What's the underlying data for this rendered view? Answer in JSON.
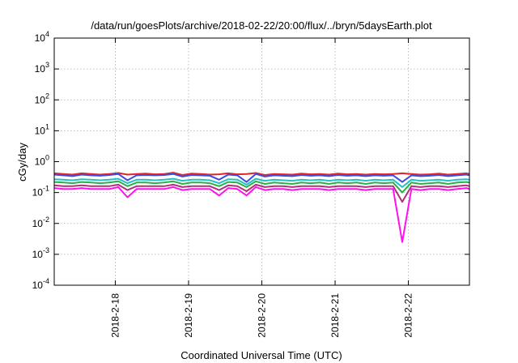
{
  "chart_data": {
    "type": "line",
    "title": "/data/run/goesPlots/archive/2018-02-22/20:00/flux/../bryn/5daysEarth.plot",
    "xlabel": "Coordinated Universal Time (UTC)",
    "ylabel": "cGy/day",
    "y_scale": "log",
    "ylim": [
      0.0001,
      10000
    ],
    "y_ticks": [
      {
        "value": 0.0001,
        "base": "10",
        "exp": "-4"
      },
      {
        "value": 0.001,
        "base": "10",
        "exp": "-3"
      },
      {
        "value": 0.01,
        "base": "10",
        "exp": "-2"
      },
      {
        "value": 0.1,
        "base": "10",
        "exp": "-1"
      },
      {
        "value": 1,
        "base": "10",
        "exp": "0"
      },
      {
        "value": 10,
        "base": "10",
        "exp": "1"
      },
      {
        "value": 100,
        "base": "10",
        "exp": "2"
      },
      {
        "value": 1000,
        "base": "10",
        "exp": "3"
      },
      {
        "value": 10000,
        "base": "10",
        "exp": "4"
      }
    ],
    "xlim": [
      "2018-02-17T04:00",
      "2018-02-22T20:00"
    ],
    "x_ticks": [
      {
        "value": "2018-02-18T00:00",
        "label": "2018-2-18"
      },
      {
        "value": "2018-02-19T00:00",
        "label": "2018-2-19"
      },
      {
        "value": "2018-02-20T00:00",
        "label": "2018-2-20"
      },
      {
        "value": "2018-02-21T00:00",
        "label": "2018-2-21"
      },
      {
        "value": "2018-02-22T00:00",
        "label": "2018-2-22"
      }
    ],
    "grid": true,
    "legend": "none",
    "x": [
      "2018-02-17T04:00",
      "2018-02-17T07:00",
      "2018-02-17T10:00",
      "2018-02-17T13:00",
      "2018-02-17T16:00",
      "2018-02-17T19:00",
      "2018-02-17T22:00",
      "2018-02-18T01:00",
      "2018-02-18T04:00",
      "2018-02-18T07:00",
      "2018-02-18T10:00",
      "2018-02-18T13:00",
      "2018-02-18T16:00",
      "2018-02-18T19:00",
      "2018-02-18T22:00",
      "2018-02-19T01:00",
      "2018-02-19T04:00",
      "2018-02-19T07:00",
      "2018-02-19T10:00",
      "2018-02-19T13:00",
      "2018-02-19T16:00",
      "2018-02-19T19:00",
      "2018-02-19T22:00",
      "2018-02-20T01:00",
      "2018-02-20T04:00",
      "2018-02-20T07:00",
      "2018-02-20T10:00",
      "2018-02-20T13:00",
      "2018-02-20T16:00",
      "2018-02-20T19:00",
      "2018-02-20T22:00",
      "2018-02-21T01:00",
      "2018-02-21T04:00",
      "2018-02-21T07:00",
      "2018-02-21T10:00",
      "2018-02-21T13:00",
      "2018-02-21T16:00",
      "2018-02-21T19:00",
      "2018-02-21T22:00",
      "2018-02-22T01:00",
      "2018-02-22T04:00",
      "2018-02-22T07:00",
      "2018-02-22T10:00",
      "2018-02-22T13:00",
      "2018-02-22T16:00",
      "2018-02-22T19:00",
      "2018-02-22T20:00"
    ],
    "series": [
      {
        "color": "#e3242b",
        "values": [
          0.42,
          0.4,
          0.38,
          0.42,
          0.4,
          0.38,
          0.4,
          0.43,
          0.38,
          0.4,
          0.41,
          0.39,
          0.4,
          0.44,
          0.37,
          0.41,
          0.4,
          0.38,
          0.39,
          0.42,
          0.39,
          0.4,
          0.43,
          0.37,
          0.4,
          0.39,
          0.38,
          0.41,
          0.39,
          0.4,
          0.38,
          0.41,
          0.39,
          0.4,
          0.38,
          0.4,
          0.39,
          0.4,
          0.42,
          0.4,
          0.38,
          0.39,
          0.41,
          0.38,
          0.4,
          0.42,
          0.4
        ]
      },
      {
        "color": "#3a4ee0",
        "values": [
          0.38,
          0.36,
          0.34,
          0.38,
          0.36,
          0.35,
          0.37,
          0.4,
          0.25,
          0.36,
          0.37,
          0.36,
          0.37,
          0.4,
          0.33,
          0.37,
          0.36,
          0.35,
          0.26,
          0.38,
          0.36,
          0.22,
          0.4,
          0.33,
          0.36,
          0.35,
          0.34,
          0.37,
          0.35,
          0.36,
          0.34,
          0.37,
          0.35,
          0.36,
          0.34,
          0.36,
          0.35,
          0.36,
          0.22,
          0.36,
          0.34,
          0.35,
          0.37,
          0.34,
          0.36,
          0.38,
          0.36
        ]
      },
      {
        "color": "#22c2c2",
        "values": [
          0.27,
          0.26,
          0.25,
          0.27,
          0.26,
          0.25,
          0.26,
          0.28,
          0.2,
          0.26,
          0.26,
          0.25,
          0.26,
          0.28,
          0.24,
          0.26,
          0.26,
          0.25,
          0.2,
          0.27,
          0.26,
          0.18,
          0.28,
          0.24,
          0.26,
          0.25,
          0.24,
          0.26,
          0.25,
          0.26,
          0.24,
          0.26,
          0.25,
          0.26,
          0.24,
          0.26,
          0.25,
          0.26,
          0.15,
          0.26,
          0.24,
          0.25,
          0.26,
          0.24,
          0.26,
          0.27,
          0.26
        ]
      },
      {
        "color": "#2ab04a",
        "values": [
          0.22,
          0.21,
          0.2,
          0.22,
          0.21,
          0.2,
          0.21,
          0.23,
          0.16,
          0.21,
          0.21,
          0.2,
          0.21,
          0.23,
          0.19,
          0.21,
          0.21,
          0.2,
          0.16,
          0.22,
          0.21,
          0.15,
          0.23,
          0.19,
          0.21,
          0.2,
          0.19,
          0.21,
          0.2,
          0.21,
          0.19,
          0.21,
          0.2,
          0.21,
          0.19,
          0.21,
          0.2,
          0.21,
          0.1,
          0.21,
          0.19,
          0.2,
          0.21,
          0.19,
          0.21,
          0.22,
          0.21
        ]
      },
      {
        "color": "#b0307a",
        "values": [
          0.17,
          0.16,
          0.16,
          0.17,
          0.16,
          0.16,
          0.16,
          0.18,
          0.12,
          0.16,
          0.16,
          0.16,
          0.16,
          0.18,
          0.15,
          0.16,
          0.16,
          0.16,
          0.12,
          0.17,
          0.16,
          0.11,
          0.18,
          0.15,
          0.16,
          0.16,
          0.15,
          0.16,
          0.16,
          0.16,
          0.15,
          0.16,
          0.16,
          0.16,
          0.15,
          0.16,
          0.16,
          0.16,
          0.05,
          0.16,
          0.15,
          0.16,
          0.16,
          0.15,
          0.16,
          0.17,
          0.16
        ]
      },
      {
        "color": "#ff10f0",
        "values": [
          0.14,
          0.13,
          0.13,
          0.14,
          0.13,
          0.13,
          0.13,
          0.15,
          0.07,
          0.13,
          0.13,
          0.13,
          0.13,
          0.15,
          0.12,
          0.13,
          0.13,
          0.13,
          0.08,
          0.14,
          0.13,
          0.08,
          0.15,
          0.12,
          0.13,
          0.13,
          0.12,
          0.13,
          0.13,
          0.13,
          0.12,
          0.13,
          0.13,
          0.13,
          0.12,
          0.13,
          0.13,
          0.13,
          0.0025,
          0.13,
          0.12,
          0.13,
          0.13,
          0.12,
          0.13,
          0.14,
          0.13
        ]
      }
    ]
  }
}
